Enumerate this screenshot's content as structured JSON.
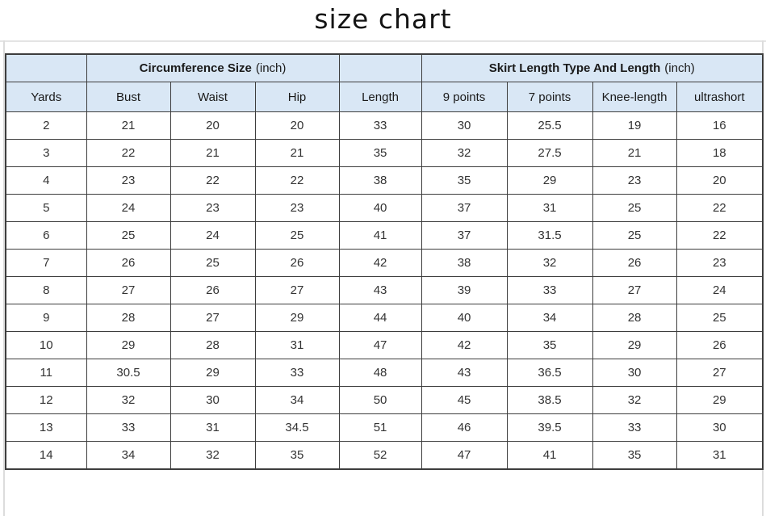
{
  "title": "size chart",
  "colors": {
    "header_bg": "#d9e7f5",
    "grid": "#3d3d3d",
    "header_text": "#1a1a1a",
    "data_text": "#333333",
    "background": "#ffffff"
  },
  "chart_data": {
    "type": "table",
    "title": "size chart",
    "groups": {
      "circumference": {
        "bold": "Circumference Size",
        "normal": "(inch)"
      },
      "skirt": {
        "bold": "Skirt Length Type And Length",
        "normal": "(inch)"
      }
    },
    "columns": [
      "Yards",
      "Bust",
      "Waist",
      "Hip",
      "Length",
      "9 points",
      "7 points",
      "Knee-length",
      "ultrashort"
    ],
    "rows": [
      [
        "2",
        "21",
        "20",
        "20",
        "33",
        "30",
        "25.5",
        "19",
        "16"
      ],
      [
        "3",
        "22",
        "21",
        "21",
        "35",
        "32",
        "27.5",
        "21",
        "18"
      ],
      [
        "4",
        "23",
        "22",
        "22",
        "38",
        "35",
        "29",
        "23",
        "20"
      ],
      [
        "5",
        "24",
        "23",
        "23",
        "40",
        "37",
        "31",
        "25",
        "22"
      ],
      [
        "6",
        "25",
        "24",
        "25",
        "41",
        "37",
        "31.5",
        "25",
        "22"
      ],
      [
        "7",
        "26",
        "25",
        "26",
        "42",
        "38",
        "32",
        "26",
        "23"
      ],
      [
        "8",
        "27",
        "26",
        "27",
        "43",
        "39",
        "33",
        "27",
        "24"
      ],
      [
        "9",
        "28",
        "27",
        "29",
        "44",
        "40",
        "34",
        "28",
        "25"
      ],
      [
        "10",
        "29",
        "28",
        "31",
        "47",
        "42",
        "35",
        "29",
        "26"
      ],
      [
        "11",
        "30.5",
        "29",
        "33",
        "48",
        "43",
        "36.5",
        "30",
        "27"
      ],
      [
        "12",
        "32",
        "30",
        "34",
        "50",
        "45",
        "38.5",
        "32",
        "29"
      ],
      [
        "13",
        "33",
        "31",
        "34.5",
        "51",
        "46",
        "39.5",
        "33",
        "30"
      ],
      [
        "14",
        "34",
        "32",
        "35",
        "52",
        "47",
        "41",
        "35",
        "31"
      ]
    ]
  }
}
